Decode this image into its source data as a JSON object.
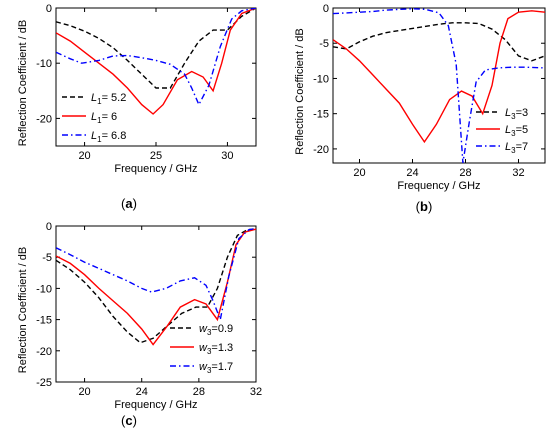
{
  "colors": {
    "black": "#000000",
    "red": "#ff0000",
    "blue": "#0000ff"
  },
  "chart_data": [
    {
      "id": "a",
      "panel_label": "a",
      "type": "line",
      "xlabel": "Frequency / GHz",
      "ylabel": "Reflection Coefficient / dB",
      "xlim": [
        18,
        32
      ],
      "ylim": [
        -25,
        0
      ],
      "x_ticks": [
        20,
        25,
        30
      ],
      "y_ticks": [
        0,
        -10,
        -20
      ],
      "legend_position": "bottom-left",
      "series": [
        {
          "name_prefix": "L",
          "name_sub": "1",
          "name_suffix": "= 5.2",
          "color": "#000000",
          "dash": "dashed",
          "x": [
            18,
            19,
            20,
            21,
            22,
            23,
            24,
            25,
            26,
            27,
            28,
            29,
            30,
            31,
            32
          ],
          "y": [
            -2.5,
            -3.2,
            -4.2,
            -5.5,
            -7.2,
            -9.5,
            -12,
            -14.5,
            -14.5,
            -10,
            -6,
            -4,
            -4,
            -1.5,
            0
          ]
        },
        {
          "name_prefix": "L",
          "name_sub": "1",
          "name_suffix": "= 6",
          "color": "#ff0000",
          "dash": "solid",
          "x": [
            18,
            19,
            20,
            21,
            22,
            23,
            24,
            24.8,
            25.5,
            26.5,
            27.5,
            28.3,
            29,
            29.6,
            30.2,
            31,
            32
          ],
          "y": [
            -4.5,
            -6,
            -8,
            -10,
            -12,
            -14.5,
            -17.5,
            -19.2,
            -17.5,
            -13,
            -11.5,
            -12.5,
            -15,
            -10,
            -4,
            -1,
            0
          ]
        },
        {
          "name_prefix": "L",
          "name_sub": "1",
          "name_suffix": "= 6.8",
          "color": "#0000ff",
          "dash": "dashdot",
          "x": [
            18,
            19,
            19.8,
            21,
            22,
            23,
            24,
            25,
            26,
            27,
            27.5,
            28,
            28.7,
            29.5,
            30.3,
            31,
            32
          ],
          "y": [
            -8,
            -9.2,
            -10,
            -9.5,
            -8.7,
            -8.6,
            -9,
            -9.5,
            -10.2,
            -12,
            -14.5,
            -17.5,
            -14,
            -7,
            -2,
            -0.5,
            0
          ]
        }
      ]
    },
    {
      "id": "b",
      "panel_label": "b",
      "type": "line",
      "xlabel": "Frequency / GHz",
      "ylabel": "Reflection Coefficient / dB",
      "xlim": [
        18,
        34
      ],
      "ylim": [
        -22,
        0
      ],
      "x_ticks": [
        20,
        24,
        28,
        32
      ],
      "y_ticks": [
        0,
        -5,
        -10,
        -15,
        -20
      ],
      "legend_position": "bottom-right",
      "series": [
        {
          "name_prefix": "L",
          "name_sub": "3",
          "name_suffix": "=3",
          "color": "#000000",
          "dash": "dashed",
          "x": [
            18,
            19,
            20,
            21,
            22,
            23,
            24,
            25,
            26,
            27,
            28,
            29,
            30,
            31,
            32,
            33,
            34
          ],
          "y": [
            -5.5,
            -5.8,
            -4.8,
            -4,
            -3.5,
            -3.2,
            -2.9,
            -2.6,
            -2.3,
            -2.1,
            -2.1,
            -2.2,
            -3,
            -4.5,
            -6.8,
            -7.5,
            -6.8
          ]
        },
        {
          "name_prefix": "L",
          "name_sub": "3",
          "name_suffix": "=5",
          "color": "#ff0000",
          "dash": "solid",
          "x": [
            18,
            19,
            20,
            21,
            22,
            23,
            24,
            24.9,
            25.8,
            26.8,
            27.7,
            28.5,
            29.3,
            30,
            30.6,
            31.2,
            32,
            33,
            34
          ],
          "y": [
            -4.5,
            -5.8,
            -7.5,
            -9.5,
            -11.5,
            -13.5,
            -16.5,
            -19,
            -16.5,
            -13,
            -11.8,
            -12.5,
            -15,
            -11,
            -5,
            -1.5,
            -0.6,
            -0.4,
            -0.6
          ]
        },
        {
          "name_prefix": "L",
          "name_sub": "3",
          "name_suffix": "=7",
          "color": "#0000ff",
          "dash": "dashdot",
          "x": [
            18,
            19,
            20,
            21,
            22,
            23,
            24,
            25,
            26,
            26.7,
            27.3,
            27.8,
            28.3,
            28.8,
            29.5,
            30.5,
            31.5,
            32.5,
            34
          ],
          "y": [
            -0.8,
            -0.7,
            -0.6,
            -0.5,
            -0.3,
            -0.2,
            -0.1,
            -0.2,
            -0.7,
            -2.5,
            -8,
            -22,
            -16,
            -10.5,
            -8.8,
            -8.5,
            -8.4,
            -8.4,
            -8.5
          ]
        }
      ]
    },
    {
      "id": "c",
      "panel_label": "c",
      "type": "line",
      "xlabel": "Frequency / GHz",
      "ylabel": "Reflection Coefficient / dB",
      "xlim": [
        18,
        32
      ],
      "ylim": [
        -25,
        0
      ],
      "x_ticks": [
        20,
        24,
        28,
        32
      ],
      "y_ticks": [
        0,
        -5,
        -10,
        -15,
        -20,
        -25
      ],
      "legend_position": "bottom-right",
      "series": [
        {
          "name_prefix": "w",
          "name_sub": "3",
          "name_suffix": "=0.9",
          "color": "#000000",
          "dash": "dashed",
          "x": [
            18,
            19,
            20,
            21,
            22,
            23,
            23.9,
            24.8,
            25.8,
            26.8,
            27.8,
            28.6,
            29.3,
            30,
            30.7,
            31.4,
            32
          ],
          "y": [
            -5.5,
            -7,
            -9,
            -11.5,
            -14.5,
            -17,
            -18.7,
            -18,
            -16,
            -14,
            -13,
            -13,
            -10,
            -5,
            -1.5,
            -0.6,
            -0.5
          ]
        },
        {
          "name_prefix": "w",
          "name_sub": "3",
          "name_suffix": "=1.3",
          "color": "#ff0000",
          "dash": "solid",
          "x": [
            18,
            19,
            20,
            21,
            22,
            23,
            24,
            24.8,
            25.8,
            26.7,
            27.7,
            28.5,
            29.3,
            30,
            30.6,
            31.2,
            32
          ],
          "y": [
            -4.8,
            -6,
            -7.8,
            -10,
            -12,
            -14,
            -16.5,
            -19,
            -16,
            -13,
            -11.8,
            -12.5,
            -15,
            -9,
            -3,
            -1,
            -0.5
          ]
        },
        {
          "name_prefix": "w",
          "name_sub": "3",
          "name_suffix": "=1.7",
          "color": "#0000ff",
          "dash": "dashdot",
          "x": [
            18,
            19,
            20,
            21,
            22,
            23,
            24,
            24.7,
            25.7,
            26.7,
            27.7,
            28.5,
            29,
            29.5,
            30.1,
            30.8,
            31.5,
            32
          ],
          "y": [
            -3.5,
            -4.6,
            -5.8,
            -6.8,
            -7.8,
            -8.8,
            -10,
            -10.6,
            -10,
            -8.8,
            -8.3,
            -9.5,
            -12,
            -15,
            -8,
            -2,
            -0.6,
            -0.4
          ]
        }
      ]
    }
  ]
}
